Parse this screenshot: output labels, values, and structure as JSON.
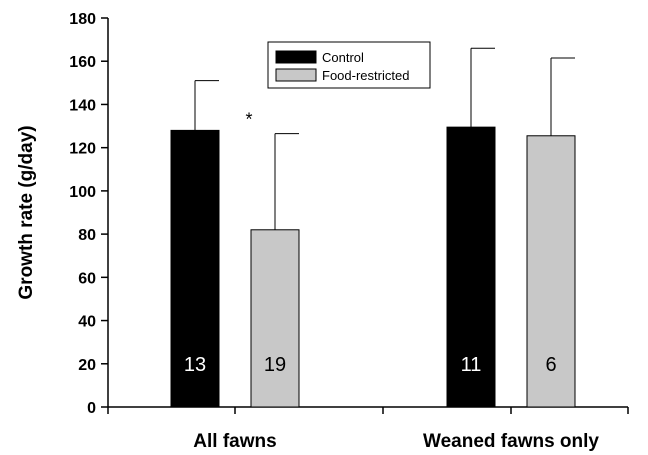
{
  "chart_data": {
    "type": "bar",
    "ylabel": "Growth rate (g/day)",
    "xlabel": "",
    "ylim": [
      0,
      180
    ],
    "yticks": [
      0,
      20,
      40,
      60,
      80,
      100,
      120,
      140,
      160,
      180
    ],
    "categories": [
      "All fawns",
      "Weaned fawns only"
    ],
    "series": [
      {
        "name": "Control",
        "color": "#000000",
        "values": [
          128,
          129.5
        ],
        "error_upper": [
          151,
          166
        ],
        "sample_sizes": [
          "13",
          "11"
        ],
        "label_color": "#ffffff"
      },
      {
        "name": "Food-restricted",
        "color": "#c8c8c8",
        "values": [
          82,
          125.5
        ],
        "error_upper": [
          126.5,
          161.5
        ],
        "sample_sizes": [
          "19",
          "6"
        ],
        "label_color": "#000000"
      }
    ],
    "legend_position": "top-center",
    "annotations": [
      {
        "text": "*",
        "category": "All fawns",
        "y": 133
      }
    ],
    "grid": false
  }
}
